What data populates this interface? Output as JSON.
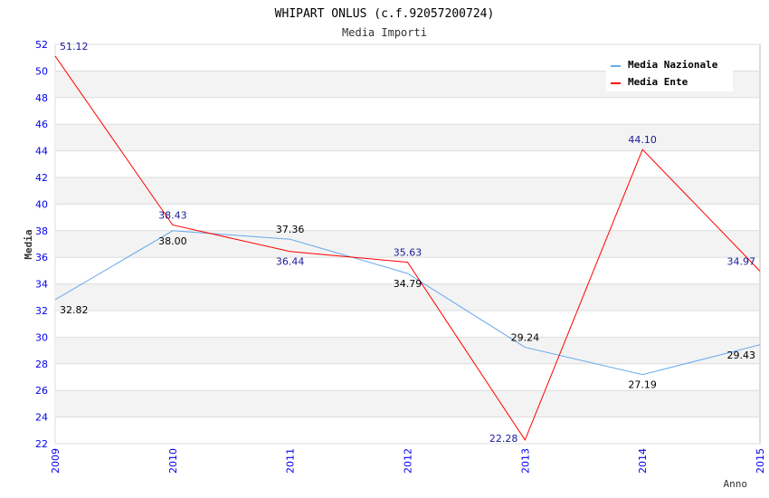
{
  "chart_data": {
    "type": "line",
    "title": "WHIPART ONLUS (c.f.92057200724)",
    "subtitle": "Media Importi",
    "xlabel": "Anno",
    "ylabel": "Media",
    "categories": [
      "2009",
      "2010",
      "2011",
      "2012",
      "2013",
      "2014",
      "2015"
    ],
    "ylim": [
      22,
      52
    ],
    "yticks": [
      22,
      24,
      26,
      28,
      30,
      32,
      34,
      36,
      38,
      40,
      42,
      44,
      46,
      48,
      50,
      52
    ],
    "grid": true,
    "legend_position": "top-right",
    "series": [
      {
        "name": "Media Nazionale",
        "color": "#66aaee",
        "label_color": "#000000",
        "values": [
          32.82,
          38.0,
          37.36,
          34.79,
          29.24,
          27.19,
          29.43
        ],
        "labels": [
          "32.82",
          "38.00",
          "37.36",
          "34.79",
          "29.24",
          "27.19",
          "29.43"
        ]
      },
      {
        "name": "Media Ente",
        "color": "#ff0000",
        "label_color": "#1a1a99",
        "values": [
          51.12,
          38.43,
          36.44,
          35.63,
          22.28,
          44.1,
          34.97
        ],
        "labels": [
          "51.12",
          "38.43",
          "36.44",
          "35.63",
          "22.28",
          "44.10",
          "34.97"
        ]
      }
    ]
  }
}
